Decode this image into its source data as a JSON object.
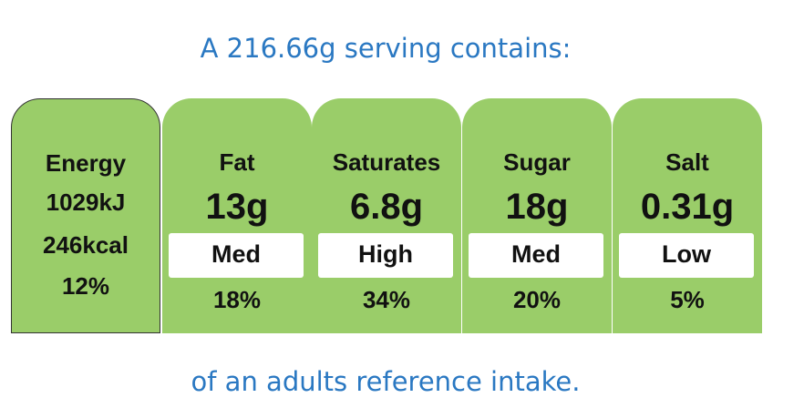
{
  "header": {
    "title": "A 216.66g serving contains:"
  },
  "energy": {
    "label": "Energy",
    "kj": "1029kJ",
    "kcal": "246kcal",
    "percent": "12%"
  },
  "nutrients": [
    {
      "name": "Fat",
      "amount": "13g",
      "level": "Med",
      "percent": "18%"
    },
    {
      "name": "Saturates",
      "amount": "6.8g",
      "level": "High",
      "percent": "34%"
    },
    {
      "name": "Sugar",
      "amount": "18g",
      "level": "Med",
      "percent": "20%"
    },
    {
      "name": "Salt",
      "amount": "0.31g",
      "level": "Low",
      "percent": "5%"
    }
  ],
  "footer": {
    "text": "of an adults reference intake."
  }
}
